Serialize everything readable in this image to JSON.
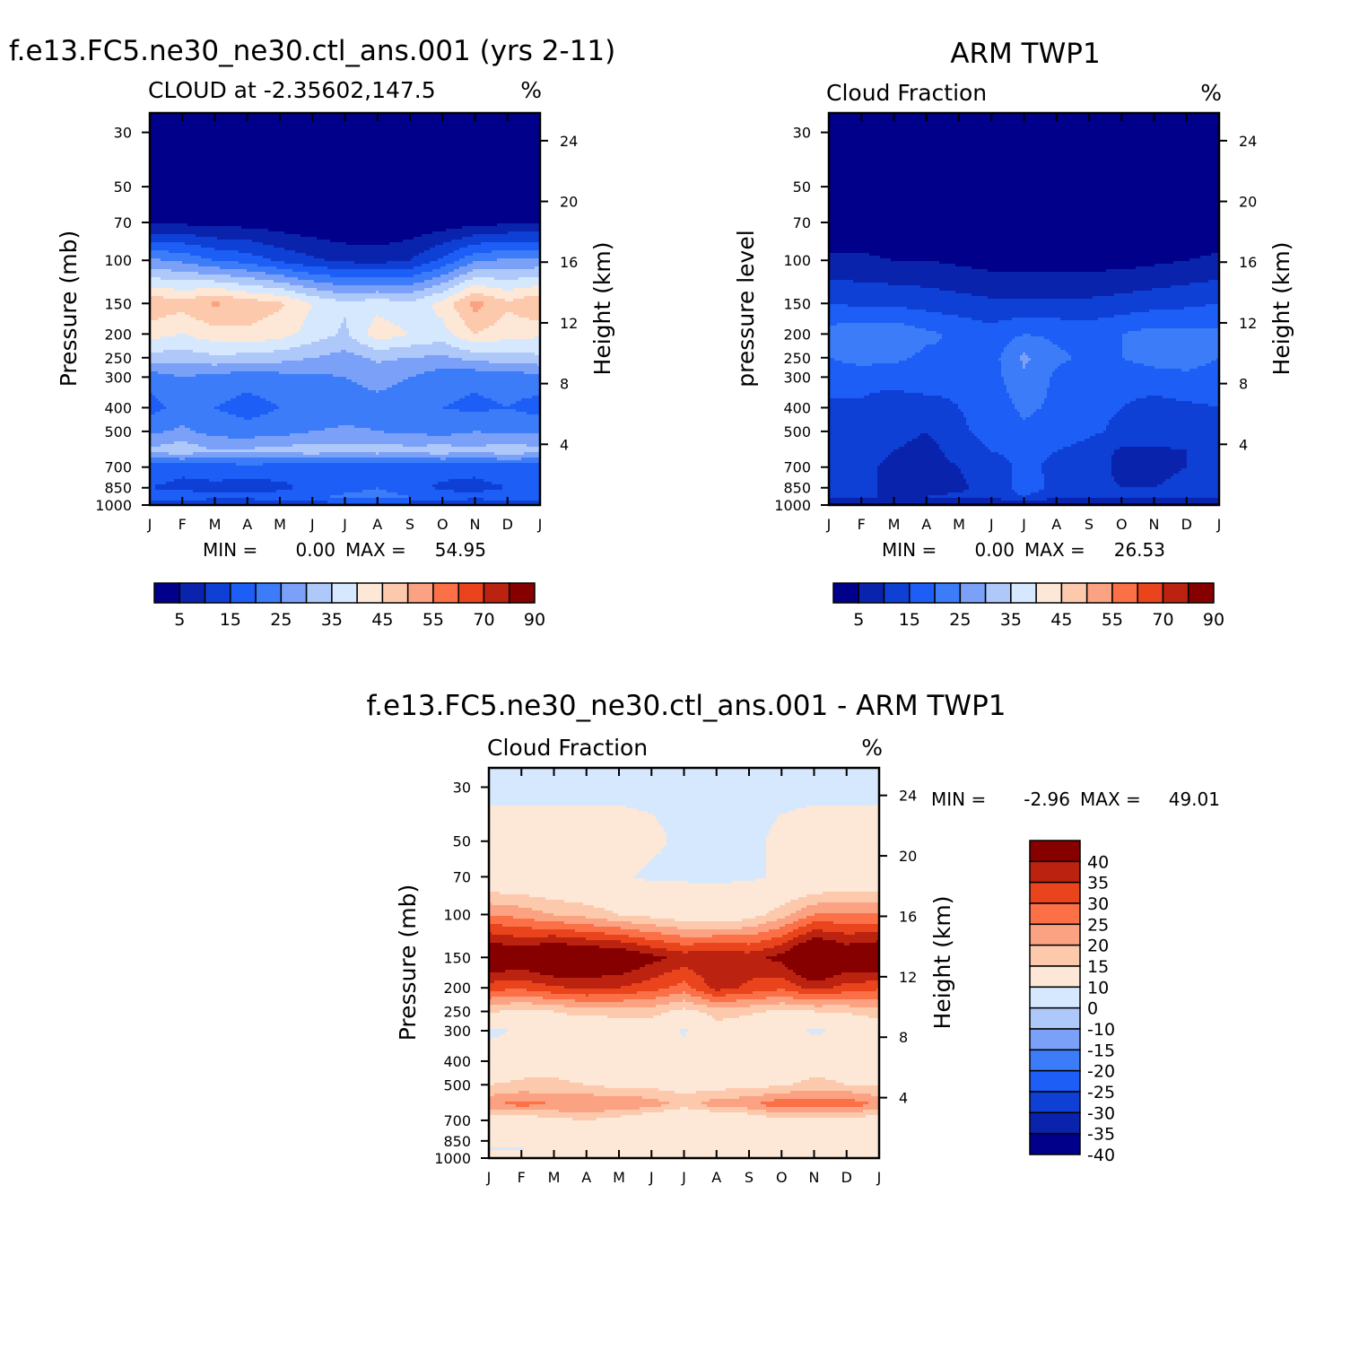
{
  "chart_data": [
    {
      "type": "heatmap",
      "title": "f.e13.FC5.ne30_ne30.ctl_ans.001 (yrs 2-11)",
      "subtitle": "CLOUD at -2.35602,147.5",
      "units": "%",
      "ylabel": "Pressure (mb)",
      "ylabel_right": "Height (km)",
      "x_ticks": [
        "J",
        "F",
        "M",
        "A",
        "M",
        "J",
        "J",
        "A",
        "S",
        "O",
        "N",
        "D",
        "J"
      ],
      "y_ticks": [
        30,
        50,
        70,
        100,
        150,
        200,
        250,
        300,
        400,
        500,
        700,
        850,
        1000
      ],
      "y_ticks_right": [
        24,
        20,
        16,
        12,
        8,
        4
      ],
      "ylim": [
        1000,
        25
      ],
      "min_label": "MIN =",
      "min_value": "0.00",
      "max_label": "MAX =",
      "max_value": "54.95",
      "colorbar_labels": [
        "5",
        "15",
        "25",
        "35",
        "45",
        "55",
        "70",
        "90"
      ],
      "grid": [
        [
          0,
          0,
          0,
          0,
          0,
          0,
          0,
          0,
          0,
          0,
          0,
          0,
          0
        ],
        [
          0,
          0,
          0,
          0,
          0,
          0,
          0,
          0,
          0,
          0,
          0,
          0,
          0
        ],
        [
          0,
          0,
          0,
          0,
          0,
          0,
          0,
          0,
          0,
          0,
          0,
          0,
          0
        ],
        [
          4,
          4,
          3,
          3,
          2,
          1,
          0,
          0,
          1,
          2,
          3,
          4,
          4
        ],
        [
          26,
          24,
          20,
          18,
          14,
          11,
          9,
          8,
          10,
          16,
          24,
          26,
          26
        ],
        [
          49,
          47,
          51,
          48,
          46,
          40,
          36,
          38,
          36,
          42,
          52,
          46,
          50
        ],
        [
          42,
          40,
          43,
          44,
          42,
          38,
          34,
          43,
          40,
          38,
          45,
          42,
          41
        ],
        [
          33,
          32,
          34,
          33,
          32,
          30,
          28,
          31,
          30,
          29,
          32,
          33,
          34
        ],
        [
          22,
          25,
          23,
          22,
          23,
          24,
          25,
          27,
          25,
          22,
          21,
          22,
          23
        ],
        [
          18,
          22,
          20,
          18,
          20,
          21,
          22,
          23,
          22,
          20,
          19,
          20,
          18
        ],
        [
          24,
          26,
          23,
          22,
          23,
          25,
          26,
          25,
          24,
          23,
          25,
          24,
          24
        ],
        [
          31,
          34,
          30,
          31,
          32,
          33,
          32,
          33,
          32,
          33,
          31,
          34,
          31
        ],
        [
          17,
          16,
          17,
          18,
          17,
          16,
          16,
          15,
          16,
          17,
          16,
          17,
          17
        ],
        [
          15,
          14,
          14,
          13,
          14,
          16,
          18,
          20,
          17,
          14,
          14,
          15,
          15
        ],
        [
          17,
          17,
          16,
          16,
          17,
          19,
          21,
          22,
          20,
          17,
          16,
          17,
          17
        ],
        [
          12,
          12,
          12,
          12,
          12,
          12,
          12,
          12,
          12,
          12,
          12,
          12,
          12
        ]
      ]
    },
    {
      "type": "heatmap",
      "title": "ARM TWP1",
      "subtitle": "Cloud Fraction",
      "units": "%",
      "ylabel": "pressure level",
      "ylabel_right": "Height (km)",
      "x_ticks": [
        "J",
        "F",
        "M",
        "A",
        "M",
        "J",
        "J",
        "A",
        "S",
        "O",
        "N",
        "D",
        "J"
      ],
      "y_ticks": [
        30,
        50,
        70,
        100,
        150,
        200,
        250,
        300,
        400,
        500,
        700,
        850,
        1000
      ],
      "y_ticks_right": [
        24,
        20,
        16,
        12,
        8,
        4
      ],
      "ylim": [
        1000,
        25
      ],
      "min_label": "MIN =",
      "min_value": "0.00",
      "max_label": "MAX =",
      "max_value": "26.53",
      "colorbar_labels": [
        "5",
        "15",
        "25",
        "35",
        "45",
        "55",
        "70",
        "90"
      ],
      "grid": [
        [
          0,
          0,
          0,
          0,
          0,
          0,
          0,
          0,
          0,
          0,
          0,
          0,
          0
        ],
        [
          0,
          0,
          0,
          0,
          0,
          0,
          0,
          0,
          0,
          0,
          0,
          0,
          0
        ],
        [
          0,
          0,
          0,
          0,
          0,
          0,
          0,
          0,
          0,
          0,
          0,
          0,
          0
        ],
        [
          1,
          1,
          1,
          1,
          1,
          1,
          1,
          1,
          1,
          1,
          1,
          1,
          1
        ],
        [
          6,
          6,
          5,
          5,
          4,
          3,
          3,
          3,
          3,
          3,
          4,
          5,
          6
        ],
        [
          15,
          14,
          14,
          13,
          12,
          11,
          11,
          11,
          11,
          12,
          13,
          14,
          15
        ],
        [
          22,
          24,
          24,
          21,
          19,
          17,
          20,
          19,
          18,
          20,
          22,
          21,
          21
        ],
        [
          20,
          22,
          21,
          19,
          20,
          18,
          26,
          21,
          19,
          20,
          22,
          22,
          20
        ],
        [
          17,
          17,
          17,
          19,
          17,
          18,
          24,
          19,
          17,
          17,
          18,
          19,
          18
        ],
        [
          14,
          14,
          12,
          12,
          15,
          17,
          21,
          19,
          16,
          15,
          13,
          14,
          15
        ],
        [
          13,
          13,
          12,
          10,
          14,
          17,
          19,
          18,
          16,
          14,
          13,
          13,
          14
        ],
        [
          12,
          12,
          10,
          8,
          12,
          15,
          16,
          15,
          13,
          9,
          9,
          10,
          12
        ],
        [
          11,
          11,
          9,
          8,
          10,
          13,
          16,
          14,
          12,
          9,
          9,
          10,
          11
        ],
        [
          11,
          11,
          9,
          8,
          9,
          12,
          17,
          14,
          11,
          10,
          10,
          11,
          11
        ],
        [
          10,
          10,
          10,
          10,
          11,
          12,
          15,
          12,
          11,
          10,
          10,
          10,
          10
        ],
        [
          3,
          3,
          3,
          3,
          3,
          3,
          3,
          3,
          3,
          3,
          3,
          3,
          3
        ]
      ]
    },
    {
      "type": "heatmap",
      "title": "f.e13.FC5.ne30_ne30.ctl_ans.001 - ARM TWP1",
      "subtitle": "Cloud Fraction",
      "units": "%",
      "ylabel": "Pressure (mb)",
      "ylabel_right": "Height (km)",
      "x_ticks": [
        "J",
        "F",
        "M",
        "A",
        "M",
        "J",
        "J",
        "A",
        "S",
        "O",
        "N",
        "D",
        "J"
      ],
      "y_ticks": [
        30,
        50,
        70,
        100,
        150,
        200,
        250,
        300,
        400,
        500,
        700,
        850,
        1000
      ],
      "y_ticks_right": [
        24,
        20,
        16,
        12,
        8,
        4
      ],
      "ylim": [
        1000,
        25
      ],
      "min_label": "MIN =",
      "min_value": "-2.96",
      "max_label": "MAX =",
      "max_value": "49.01",
      "colorbar_labels": [
        "40",
        "35",
        "30",
        "25",
        "20",
        "15",
        "10",
        "0",
        "-10",
        "-15",
        "-20",
        "-25",
        "-30",
        "-35",
        "-40"
      ],
      "grid": [
        [
          -1,
          -1,
          -1,
          -1,
          -1,
          -1,
          -1,
          -1,
          -1,
          -1,
          -1,
          -1,
          -1
        ],
        [
          -1,
          -1,
          -1,
          -1,
          -1,
          -1,
          -1,
          -1,
          -1,
          -1,
          -1,
          -1,
          -1
        ],
        [
          2,
          2,
          2,
          2,
          2,
          1,
          -1,
          -1,
          -1,
          1,
          2,
          2,
          2
        ],
        [
          3,
          3,
          2,
          2,
          1,
          -1,
          -1,
          -1,
          -1,
          1,
          2,
          3,
          3
        ],
        [
          20,
          18,
          15,
          13,
          10,
          8,
          6,
          5,
          7,
          13,
          20,
          21,
          20
        ],
        [
          43,
          41,
          45,
          43,
          42,
          37,
          33,
          35,
          33,
          37,
          48,
          41,
          44
        ],
        [
          27,
          26,
          29,
          31,
          30,
          27,
          23,
          32,
          29,
          26,
          32,
          28,
          26
        ],
        [
          11,
          8,
          10,
          12,
          12,
          12,
          8,
          12,
          11,
          9,
          10,
          11,
          13
        ],
        [
          -2,
          1,
          6,
          3,
          6,
          6,
          -1,
          8,
          6,
          2,
          -1,
          1,
          5
        ],
        [
          5,
          7,
          8,
          6,
          6,
          6,
          4,
          8,
          8,
          3,
          6,
          6,
          3
        ],
        [
          10,
          11,
          11,
          10,
          8,
          8,
          7,
          7,
          8,
          9,
          12,
          10,
          9
        ],
        [
          19,
          22,
          20,
          20,
          20,
          18,
          13,
          18,
          19,
          24,
          22,
          24,
          19
        ],
        [
          6,
          5,
          8,
          10,
          7,
          3,
          0,
          1,
          4,
          8,
          7,
          7,
          6
        ],
        [
          4,
          3,
          5,
          5,
          5,
          4,
          1,
          6,
          6,
          4,
          4,
          4,
          4
        ],
        [
          -1,
          -1,
          7,
          8,
          8,
          7,
          6,
          8,
          9,
          7,
          6,
          6,
          6
        ],
        [
          9,
          9,
          9,
          9,
          9,
          9,
          9,
          9,
          9,
          9,
          9,
          9,
          9
        ]
      ]
    }
  ]
}
